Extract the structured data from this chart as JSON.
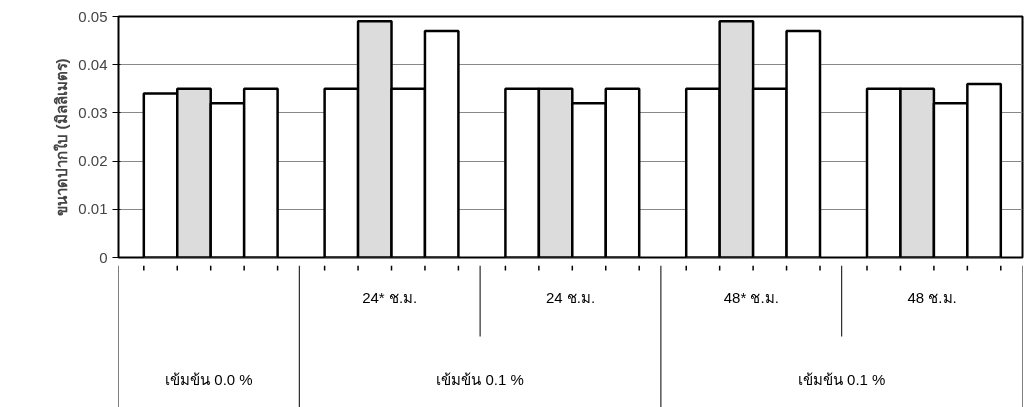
{
  "chart_data": {
    "type": "bar",
    "ylabel": "ขนาดปากใบ (มิลลิเมตร)",
    "categories": [
      null,
      "24* ช.ม.",
      "24 ช.ม.",
      "48* ช.ม.",
      "48 ช.ม."
    ],
    "series": [
      {
        "color": "#ffffff",
        "values": [
          0.034,
          0.035,
          0.035,
          0.035,
          0.035
        ]
      },
      {
        "color": "#dcdcdc",
        "values": [
          0.035,
          0.049,
          0.035,
          0.049,
          0.035
        ]
      },
      {
        "color": "#ffffff",
        "values": [
          0.032,
          0.035,
          0.032,
          0.035,
          0.032
        ]
      },
      {
        "color": "#ffffff",
        "values": [
          0.035,
          0.047,
          0.035,
          0.047,
          0.036
        ]
      }
    ],
    "annotations": [
      "เข้มข้น 0.0 %",
      "เข้มข้น 0.1 %",
      "เข้มข้น 0.1 %"
    ],
    "ylim": [
      0,
      0.05
    ],
    "yticks": [
      0,
      0.01,
      0.02,
      0.03,
      0.04,
      0.05
    ],
    "grid": "y"
  }
}
